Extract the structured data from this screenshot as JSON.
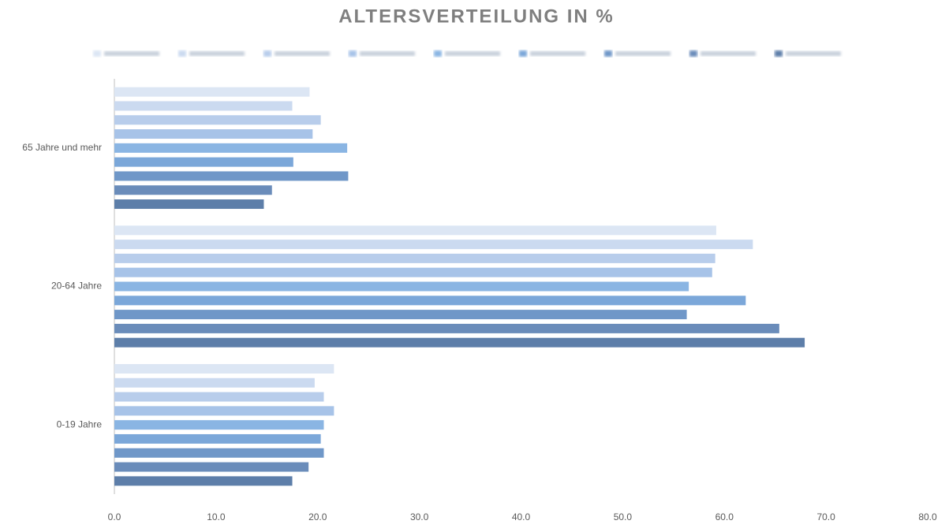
{
  "chart_data": {
    "type": "hbar",
    "title": "ALTERSVERTEILUNG IN %",
    "categories": [
      "0-19 Jahre",
      "20-64 Jahre",
      "65 Jahre und mehr"
    ],
    "series": [
      {
        "color": "#dce6f4",
        "values": [
          21.6,
          59.2,
          19.2
        ]
      },
      {
        "color": "#cbdaf0",
        "values": [
          19.7,
          62.8,
          17.5
        ]
      },
      {
        "color": "#b8cdeb",
        "values": [
          20.6,
          59.1,
          20.3
        ]
      },
      {
        "color": "#a7c3e8",
        "values": [
          21.6,
          58.8,
          19.5
        ]
      },
      {
        "color": "#8ab5e3",
        "values": [
          20.6,
          56.5,
          22.9
        ]
      },
      {
        "color": "#7ba7d9",
        "values": [
          20.3,
          62.1,
          17.6
        ]
      },
      {
        "color": "#6f97c8",
        "values": [
          20.6,
          56.3,
          23.0
        ]
      },
      {
        "color": "#6a8cba",
        "values": [
          19.1,
          65.4,
          15.5
        ]
      },
      {
        "color": "#5d7ea9",
        "values": [
          17.5,
          67.9,
          14.7
        ]
      }
    ],
    "xlim": [
      0,
      80
    ],
    "xticks": [
      {
        "value": 0,
        "label": "0.0"
      },
      {
        "value": 10,
        "label": "10.0"
      },
      {
        "value": 20,
        "label": "20.0"
      },
      {
        "value": 30,
        "label": "30.0"
      },
      {
        "value": 40,
        "label": "40.0"
      },
      {
        "value": 50,
        "label": "50.0"
      },
      {
        "value": 60,
        "label": "60.0"
      },
      {
        "value": 70,
        "label": "70.0"
      },
      {
        "value": 80,
        "label": "80.0"
      }
    ]
  }
}
